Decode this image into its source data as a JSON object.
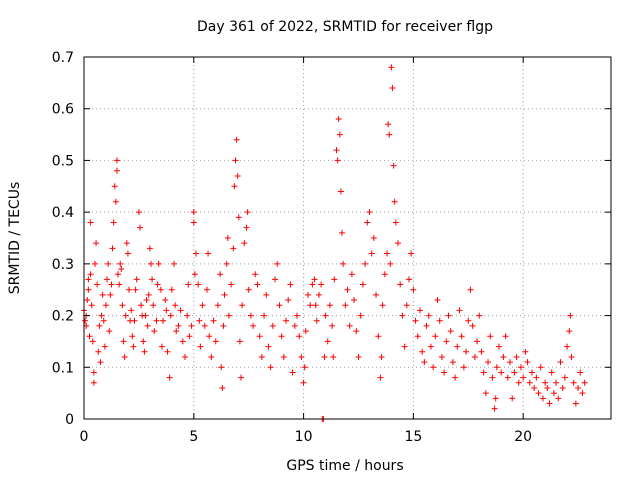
{
  "chart_data": {
    "type": "scatter",
    "title": "Day 361 of 2022, SRMTID for receiver flgp",
    "xlabel": "GPS time / hours",
    "ylabel": "SRMTID / TECUs",
    "xlim": [
      0,
      24
    ],
    "ylim": [
      0,
      0.7
    ],
    "xticks": [
      0,
      5,
      10,
      15,
      20
    ],
    "xtick_labels": [
      "0",
      "5",
      "10",
      "15",
      "20"
    ],
    "yticks": [
      0,
      0.1,
      0.2,
      0.3,
      0.4,
      0.5,
      0.6,
      0.7
    ],
    "ytick_labels": [
      "0",
      "0.1",
      "0.2",
      "0.3",
      "0.4",
      "0.5",
      "0.6",
      "0.7"
    ],
    "grid": true,
    "marker": "+",
    "color": "#ff0000",
    "series": [
      {
        "name": "SRMTID",
        "points": [
          [
            0.0,
            0.21
          ],
          [
            0.05,
            0.19
          ],
          [
            0.1,
            0.2
          ],
          [
            0.1,
            0.18
          ],
          [
            0.15,
            0.23
          ],
          [
            0.2,
            0.25
          ],
          [
            0.2,
            0.27
          ],
          [
            0.25,
            0.16
          ],
          [
            0.3,
            0.38
          ],
          [
            0.3,
            0.28
          ],
          [
            0.35,
            0.22
          ],
          [
            0.4,
            0.15
          ],
          [
            0.45,
            0.07
          ],
          [
            0.45,
            0.09
          ],
          [
            0.5,
            0.3
          ],
          [
            0.55,
            0.34
          ],
          [
            0.6,
            0.26
          ],
          [
            0.65,
            0.13
          ],
          [
            0.7,
            0.18
          ],
          [
            0.75,
            0.11
          ],
          [
            0.8,
            0.2
          ],
          [
            0.85,
            0.24
          ],
          [
            0.9,
            0.19
          ],
          [
            0.95,
            0.14
          ],
          [
            1.0,
            0.22
          ],
          [
            1.05,
            0.27
          ],
          [
            1.1,
            0.3
          ],
          [
            1.15,
            0.17
          ],
          [
            1.2,
            0.24
          ],
          [
            1.25,
            0.26
          ],
          [
            1.3,
            0.33
          ],
          [
            1.35,
            0.38
          ],
          [
            1.4,
            0.45
          ],
          [
            1.45,
            0.42
          ],
          [
            1.5,
            0.5
          ],
          [
            1.5,
            0.48
          ],
          [
            1.55,
            0.28
          ],
          [
            1.6,
            0.26
          ],
          [
            1.65,
            0.3
          ],
          [
            1.7,
            0.29
          ],
          [
            1.75,
            0.22
          ],
          [
            1.8,
            0.15
          ],
          [
            1.85,
            0.12
          ],
          [
            1.9,
            0.2
          ],
          [
            1.95,
            0.34
          ],
          [
            2.0,
            0.32
          ],
          [
            2.05,
            0.25
          ],
          [
            2.1,
            0.19
          ],
          [
            2.15,
            0.21
          ],
          [
            2.2,
            0.16
          ],
          [
            2.25,
            0.14
          ],
          [
            2.3,
            0.19
          ],
          [
            2.35,
            0.25
          ],
          [
            2.4,
            0.27
          ],
          [
            2.5,
            0.4
          ],
          [
            2.55,
            0.37
          ],
          [
            2.6,
            0.22
          ],
          [
            2.65,
            0.2
          ],
          [
            2.7,
            0.15
          ],
          [
            2.75,
            0.13
          ],
          [
            2.8,
            0.2
          ],
          [
            2.85,
            0.23
          ],
          [
            2.9,
            0.18
          ],
          [
            2.95,
            0.24
          ],
          [
            3.0,
            0.33
          ],
          [
            3.05,
            0.3
          ],
          [
            3.1,
            0.27
          ],
          [
            3.15,
            0.22
          ],
          [
            3.2,
            0.17
          ],
          [
            3.3,
            0.19
          ],
          [
            3.35,
            0.26
          ],
          [
            3.4,
            0.3
          ],
          [
            3.5,
            0.25
          ],
          [
            3.55,
            0.14
          ],
          [
            3.6,
            0.19
          ],
          [
            3.7,
            0.23
          ],
          [
            3.75,
            0.21
          ],
          [
            3.8,
            0.13
          ],
          [
            3.9,
            0.08
          ],
          [
            3.95,
            0.2
          ],
          [
            4.0,
            0.25
          ],
          [
            4.1,
            0.3
          ],
          [
            4.15,
            0.22
          ],
          [
            4.2,
            0.17
          ],
          [
            4.3,
            0.18
          ],
          [
            4.4,
            0.21
          ],
          [
            4.5,
            0.15
          ],
          [
            4.6,
            0.12
          ],
          [
            4.7,
            0.2
          ],
          [
            4.75,
            0.26
          ],
          [
            4.8,
            0.16
          ],
          [
            4.9,
            0.18
          ],
          [
            5.0,
            0.4
          ],
          [
            5.0,
            0.38
          ],
          [
            5.05,
            0.28
          ],
          [
            5.1,
            0.32
          ],
          [
            5.2,
            0.26
          ],
          [
            5.25,
            0.19
          ],
          [
            5.3,
            0.14
          ],
          [
            5.4,
            0.22
          ],
          [
            5.5,
            0.18
          ],
          [
            5.6,
            0.25
          ],
          [
            5.65,
            0.32
          ],
          [
            5.7,
            0.16
          ],
          [
            5.8,
            0.12
          ],
          [
            5.9,
            0.19
          ],
          [
            6.0,
            0.15
          ],
          [
            6.1,
            0.22
          ],
          [
            6.2,
            0.28
          ],
          [
            6.25,
            0.1
          ],
          [
            6.3,
            0.06
          ],
          [
            6.35,
            0.18
          ],
          [
            6.4,
            0.24
          ],
          [
            6.5,
            0.3
          ],
          [
            6.55,
            0.35
          ],
          [
            6.6,
            0.2
          ],
          [
            6.7,
            0.26
          ],
          [
            6.8,
            0.33
          ],
          [
            6.85,
            0.45
          ],
          [
            6.9,
            0.5
          ],
          [
            6.95,
            0.54
          ],
          [
            7.0,
            0.47
          ],
          [
            7.05,
            0.39
          ],
          [
            7.1,
            0.15
          ],
          [
            7.15,
            0.08
          ],
          [
            7.2,
            0.22
          ],
          [
            7.3,
            0.34
          ],
          [
            7.4,
            0.37
          ],
          [
            7.45,
            0.4
          ],
          [
            7.5,
            0.25
          ],
          [
            7.6,
            0.2
          ],
          [
            7.7,
            0.18
          ],
          [
            7.8,
            0.28
          ],
          [
            7.9,
            0.26
          ],
          [
            8.0,
            0.16
          ],
          [
            8.1,
            0.12
          ],
          [
            8.2,
            0.2
          ],
          [
            8.3,
            0.24
          ],
          [
            8.4,
            0.14
          ],
          [
            8.5,
            0.1
          ],
          [
            8.6,
            0.18
          ],
          [
            8.7,
            0.27
          ],
          [
            8.8,
            0.3
          ],
          [
            8.9,
            0.22
          ],
          [
            9.0,
            0.16
          ],
          [
            9.1,
            0.12
          ],
          [
            9.2,
            0.19
          ],
          [
            9.3,
            0.23
          ],
          [
            9.4,
            0.26
          ],
          [
            9.5,
            0.09
          ],
          [
            9.6,
            0.18
          ],
          [
            9.7,
            0.2
          ],
          [
            9.8,
            0.16
          ],
          [
            9.9,
            0.12
          ],
          [
            10.0,
            0.07
          ],
          [
            10.05,
            0.1
          ],
          [
            10.1,
            0.17
          ],
          [
            10.2,
            0.24
          ],
          [
            10.3,
            0.22
          ],
          [
            10.4,
            0.26
          ],
          [
            10.5,
            0.27
          ],
          [
            10.55,
            0.22
          ],
          [
            10.6,
            0.19
          ],
          [
            10.7,
            0.24
          ],
          [
            10.8,
            0.26
          ],
          [
            10.85,
            0.0
          ],
          [
            10.9,
            0.0
          ],
          [
            10.95,
            0.12
          ],
          [
            11.0,
            0.2
          ],
          [
            11.1,
            0.15
          ],
          [
            11.2,
            0.22
          ],
          [
            11.3,
            0.18
          ],
          [
            11.35,
            0.12
          ],
          [
            11.4,
            0.27
          ],
          [
            11.5,
            0.52
          ],
          [
            11.55,
            0.5
          ],
          [
            11.6,
            0.58
          ],
          [
            11.65,
            0.55
          ],
          [
            11.7,
            0.44
          ],
          [
            11.75,
            0.36
          ],
          [
            11.8,
            0.3
          ],
          [
            11.9,
            0.22
          ],
          [
            12.0,
            0.25
          ],
          [
            12.1,
            0.18
          ],
          [
            12.2,
            0.28
          ],
          [
            12.3,
            0.23
          ],
          [
            12.4,
            0.17
          ],
          [
            12.5,
            0.12
          ],
          [
            12.6,
            0.2
          ],
          [
            12.7,
            0.26
          ],
          [
            12.8,
            0.3
          ],
          [
            12.9,
            0.38
          ],
          [
            13.0,
            0.4
          ],
          [
            13.1,
            0.32
          ],
          [
            13.2,
            0.35
          ],
          [
            13.3,
            0.24
          ],
          [
            13.4,
            0.16
          ],
          [
            13.5,
            0.08
          ],
          [
            13.55,
            0.12
          ],
          [
            13.6,
            0.22
          ],
          [
            13.7,
            0.28
          ],
          [
            13.8,
            0.32
          ],
          [
            13.85,
            0.57
          ],
          [
            13.9,
            0.55
          ],
          [
            13.95,
            0.3
          ],
          [
            14.0,
            0.68
          ],
          [
            14.05,
            0.64
          ],
          [
            14.1,
            0.49
          ],
          [
            14.15,
            0.42
          ],
          [
            14.2,
            0.38
          ],
          [
            14.3,
            0.34
          ],
          [
            14.4,
            0.26
          ],
          [
            14.5,
            0.2
          ],
          [
            14.6,
            0.14
          ],
          [
            14.7,
            0.22
          ],
          [
            14.8,
            0.27
          ],
          [
            14.9,
            0.32
          ],
          [
            15.0,
            0.25
          ],
          [
            15.1,
            0.19
          ],
          [
            15.2,
            0.16
          ],
          [
            15.3,
            0.21
          ],
          [
            15.4,
            0.13
          ],
          [
            15.5,
            0.11
          ],
          [
            15.6,
            0.18
          ],
          [
            15.7,
            0.2
          ],
          [
            15.8,
            0.14
          ],
          [
            15.9,
            0.1
          ],
          [
            16.0,
            0.16
          ],
          [
            16.1,
            0.23
          ],
          [
            16.2,
            0.19
          ],
          [
            16.3,
            0.12
          ],
          [
            16.4,
            0.09
          ],
          [
            16.5,
            0.15
          ],
          [
            16.6,
            0.2
          ],
          [
            16.7,
            0.17
          ],
          [
            16.8,
            0.11
          ],
          [
            16.9,
            0.08
          ],
          [
            17.0,
            0.14
          ],
          [
            17.1,
            0.21
          ],
          [
            17.2,
            0.16
          ],
          [
            17.3,
            0.1
          ],
          [
            17.4,
            0.13
          ],
          [
            17.5,
            0.19
          ],
          [
            17.6,
            0.25
          ],
          [
            17.7,
            0.18
          ],
          [
            17.8,
            0.12
          ],
          [
            17.9,
            0.15
          ],
          [
            18.0,
            0.2
          ],
          [
            18.1,
            0.13
          ],
          [
            18.2,
            0.09
          ],
          [
            18.3,
            0.05
          ],
          [
            18.4,
            0.11
          ],
          [
            18.5,
            0.16
          ],
          [
            18.6,
            0.08
          ],
          [
            18.7,
            0.02
          ],
          [
            18.75,
            0.04
          ],
          [
            18.8,
            0.1
          ],
          [
            18.9,
            0.14
          ],
          [
            19.0,
            0.09
          ],
          [
            19.1,
            0.12
          ],
          [
            19.2,
            0.16
          ],
          [
            19.3,
            0.08
          ],
          [
            19.4,
            0.11
          ],
          [
            19.5,
            0.04
          ],
          [
            19.6,
            0.09
          ],
          [
            19.7,
            0.12
          ],
          [
            19.8,
            0.07
          ],
          [
            19.9,
            0.1
          ],
          [
            20.0,
            0.08
          ],
          [
            20.1,
            0.13
          ],
          [
            20.2,
            0.11
          ],
          [
            20.3,
            0.07
          ],
          [
            20.4,
            0.09
          ],
          [
            20.5,
            0.06
          ],
          [
            20.6,
            0.08
          ],
          [
            20.7,
            0.05
          ],
          [
            20.8,
            0.1
          ],
          [
            20.9,
            0.04
          ],
          [
            21.0,
            0.07
          ],
          [
            21.1,
            0.06
          ],
          [
            21.2,
            0.03
          ],
          [
            21.3,
            0.09
          ],
          [
            21.4,
            0.05
          ],
          [
            21.5,
            0.07
          ],
          [
            21.6,
            0.04
          ],
          [
            21.7,
            0.11
          ],
          [
            21.8,
            0.06
          ],
          [
            21.9,
            0.08
          ],
          [
            22.0,
            0.14
          ],
          [
            22.1,
            0.17
          ],
          [
            22.15,
            0.2
          ],
          [
            22.2,
            0.12
          ],
          [
            22.3,
            0.07
          ],
          [
            22.4,
            0.03
          ],
          [
            22.5,
            0.06
          ],
          [
            22.6,
            0.09
          ],
          [
            22.7,
            0.05
          ],
          [
            22.8,
            0.07
          ]
        ]
      }
    ]
  }
}
